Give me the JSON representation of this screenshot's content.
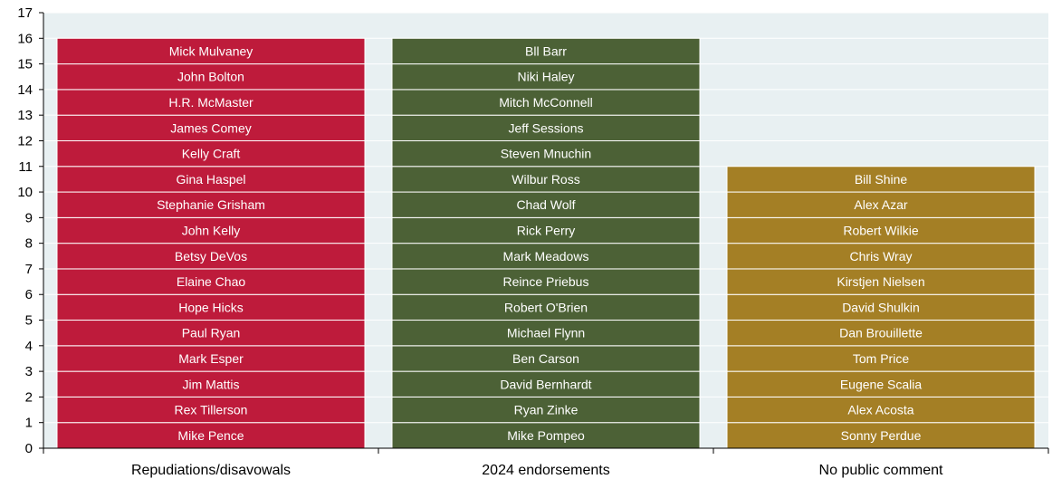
{
  "chart_data": {
    "type": "bar",
    "stacked": true,
    "title": "",
    "xlabel": "",
    "ylabel": "",
    "ylim": [
      0,
      17
    ],
    "yticks": [
      0,
      1,
      2,
      3,
      4,
      5,
      6,
      7,
      8,
      9,
      10,
      11,
      12,
      13,
      14,
      15,
      16,
      17
    ],
    "grid": true,
    "legend": "none",
    "categories": [
      "Repudiations/disavowals",
      "2024 endorsements",
      "No public comment"
    ],
    "values": [
      16,
      16,
      11
    ],
    "colors": [
      "#BE1B3B",
      "#4C6136",
      "#A47F25"
    ],
    "plot_background": "#E8F0F2",
    "segments": [
      [
        "Mike Pence",
        "Rex Tillerson",
        "Jim Mattis",
        "Mark Esper",
        "Paul Ryan",
        "Hope Hicks",
        "Elaine Chao",
        "Betsy DeVos",
        "John Kelly",
        "Stephanie Grisham",
        "Gina Haspel",
        "Kelly Craft",
        "James Comey",
        "H.R. McMaster",
        "John Bolton",
        "Mick Mulvaney"
      ],
      [
        "Mike Pompeo",
        "Ryan Zinke",
        "David Bernhardt",
        "Ben Carson",
        "Michael Flynn",
        "Robert O'Brien",
        "Reince Priebus",
        "Mark Meadows",
        "Rick Perry",
        "Chad Wolf",
        "Wilbur Ross",
        "Steven Mnuchin",
        "Jeff Sessions",
        "Mitch McConnell",
        "Niki Haley",
        "Bll Barr"
      ],
      [
        "Sonny Perdue",
        "Alex Acosta",
        "Eugene Scalia",
        "Tom Price",
        "Dan Brouillette",
        "David Shulkin",
        "Kirstjen Nielsen",
        "Chris Wray",
        "Robert Wilkie",
        "Alex Azar",
        "Bill Shine"
      ]
    ]
  }
}
